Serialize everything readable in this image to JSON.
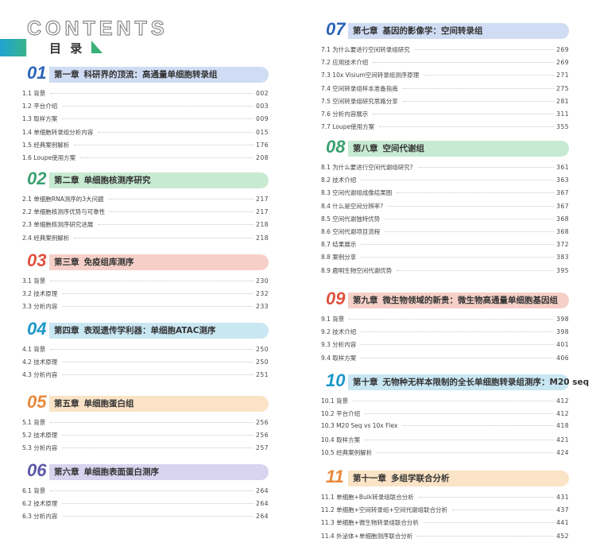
{
  "header": {
    "title": "CONTENTS",
    "subtitle": "目 录"
  },
  "chapters": [
    {
      "num": "01",
      "label": "第一章",
      "title": "科研界的顶流：高通量单细胞转录组",
      "items": [
        {
          "label": "1.1 背景",
          "page": "002"
        },
        {
          "label": "1.2 平台介绍",
          "page": "003"
        },
        {
          "label": "1.3 取样方案",
          "page": "009"
        },
        {
          "label": "1.4 单细胞转录组分析内容",
          "page": "015"
        },
        {
          "label": "1.5 经典案例解析",
          "page": "176"
        },
        {
          "label": "1.6 Loupe使用方案",
          "page": "208"
        }
      ]
    },
    {
      "num": "02",
      "label": "第二章",
      "title": "单细胞核测序研究",
      "items": [
        {
          "label": "2.1 单细胞RNA测序的3大问题",
          "page": "217"
        },
        {
          "label": "2.2 单细胞核测序优势与可靠性",
          "page": "217"
        },
        {
          "label": "2.3 单细胞核测序研究进展",
          "page": "218"
        },
        {
          "label": "2.4 经典案例解析",
          "page": "218"
        }
      ]
    },
    {
      "num": "03",
      "label": "第三章",
      "title": "免疫组库测序",
      "items": [
        {
          "label": "3.1 背景",
          "page": "230"
        },
        {
          "label": "3.2 技术原理",
          "page": "232"
        },
        {
          "label": "3.3 分析内容",
          "page": "233"
        }
      ]
    },
    {
      "num": "04",
      "label": "第四章",
      "title": "表观遗传学利器：单细胞ATAC测序",
      "items": [
        {
          "label": "4.1 背景",
          "page": "250"
        },
        {
          "label": "4.2 技术原理",
          "page": "250"
        },
        {
          "label": "4.3 分析内容",
          "page": "251"
        }
      ]
    },
    {
      "num": "05",
      "label": "第五章",
      "title": "单细胞蛋白组",
      "items": [
        {
          "label": "5.1 背景",
          "page": "256"
        },
        {
          "label": "5.2 技术原理",
          "page": "256"
        },
        {
          "label": "5.3 分析内容",
          "page": "257"
        }
      ]
    },
    {
      "num": "06",
      "label": "第六章",
      "title": "单细胞表面蛋白测序",
      "items": [
        {
          "label": "6.1 背景",
          "page": "264"
        },
        {
          "label": "6.2 技术原理",
          "page": "264"
        },
        {
          "label": "6.3 分析内容",
          "page": "264"
        }
      ]
    },
    {
      "num": "07",
      "label": "第七章",
      "title": "基因的影像学：空间转录组",
      "items": [
        {
          "label": "7.1 为什么要进行空间转录组研究",
          "page": "269"
        },
        {
          "label": "7.2 应用技术介绍",
          "page": "269"
        },
        {
          "label": "7.3 10x Visium空间转录组测序原理",
          "page": "271"
        },
        {
          "label": "7.4 空间转录组样本准备指南",
          "page": "275"
        },
        {
          "label": "7.5 空间转录组研究思路分享",
          "page": "281"
        },
        {
          "label": "7.6 分析内容展示",
          "page": "311"
        },
        {
          "label": "7.7 Loupe使用方案",
          "page": "355"
        }
      ]
    },
    {
      "num": "08",
      "label": "第八章",
      "title": "空间代谢组",
      "items": [
        {
          "label": "8.1 为什么要进行空间代谢组研究?",
          "page": "361"
        },
        {
          "label": "8.2 技术介绍",
          "page": "363"
        },
        {
          "label": "8.3 空间代谢组成像结果图",
          "page": "367"
        },
        {
          "label": "8.4 什么是空间分辨率?",
          "page": "367"
        },
        {
          "label": "8.5 空间代谢独特优势",
          "page": "368"
        },
        {
          "label": "8.6 空间代谢项目流程",
          "page": "368"
        },
        {
          "label": "8.7 结果展示",
          "page": "372"
        },
        {
          "label": "8.8 案例分享",
          "page": "383"
        },
        {
          "label": "8.9 鹿明生物空间代谢优势",
          "page": "395"
        }
      ]
    },
    {
      "num": "09",
      "label": "第九章",
      "title": "微生物领域的新贵：微生物高通量单细胞基因组",
      "items": [
        {
          "label": "9.1 背景",
          "page": "398"
        },
        {
          "label": "9.2 技术介绍",
          "page": "398"
        },
        {
          "label": "9.3 分析内容",
          "page": "401"
        },
        {
          "label": "9.4 取样方案",
          "page": "406"
        }
      ]
    },
    {
      "num": "10",
      "label": "第十章",
      "title": "无物种无样本限制的全长单细胞转录组测序：M20 seq",
      "items": [
        {
          "label": "10.1 背景",
          "page": "412"
        },
        {
          "label": "10.2 平台介绍",
          "page": "412"
        },
        {
          "label": "10.3 M20 Seq vs 10x Flex",
          "page": "418"
        },
        {
          "label": "10.4 取样方案",
          "page": "421"
        },
        {
          "label": "10.5 经典案例解析",
          "page": "424"
        }
      ]
    },
    {
      "num": "11",
      "label": "第十一章",
      "title": "多组学联合分析",
      "items": [
        {
          "label": "11.1 单细胞+Bulk转录组联合分析",
          "page": "431"
        },
        {
          "label": "11.2 单细胞+空间转录组+空间代谢组联合分析",
          "page": "437"
        },
        {
          "label": "11.3 单细胞+微生物转录组联合分析",
          "page": "441"
        },
        {
          "label": "11.4 外泌体+单细胞测序联合分析",
          "page": "452"
        }
      ]
    }
  ]
}
